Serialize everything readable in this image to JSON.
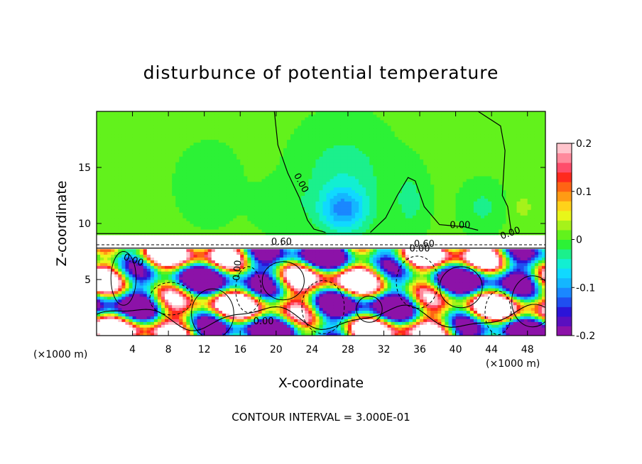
{
  "chart_data": {
    "type": "heatmap",
    "title": "disturbunce of potential temperature",
    "xlabel": "X-coordinate",
    "ylabel": "Z-coordinate",
    "x_unit_left": "(×1000 m)",
    "x_unit_right": "(×1000 m)",
    "xlim": [
      0,
      50
    ],
    "ylim": [
      0,
      20
    ],
    "x_ticks": [
      {
        "v": 4,
        "label": "4"
      },
      {
        "v": 8,
        "label": "8"
      },
      {
        "v": 12,
        "label": "12"
      },
      {
        "v": 16,
        "label": "16"
      },
      {
        "v": 20,
        "label": "20"
      },
      {
        "v": 24,
        "label": "24"
      },
      {
        "v": 28,
        "label": "28"
      },
      {
        "v": 32,
        "label": "32"
      },
      {
        "v": 36,
        "label": "36"
      },
      {
        "v": 40,
        "label": "40"
      },
      {
        "v": 44,
        "label": "44"
      },
      {
        "v": 48,
        "label": "48"
      }
    ],
    "y_ticks": [
      {
        "v": 5,
        "label": "5"
      },
      {
        "v": 10,
        "label": "10"
      },
      {
        "v": 15,
        "label": "15"
      }
    ],
    "colorbar": {
      "range": [
        -0.2,
        0.2
      ],
      "labels": [
        {
          "v": 0.2,
          "label": "0.2"
        },
        {
          "v": 0.1,
          "label": "0.1"
        },
        {
          "v": 0,
          "label": "0"
        },
        {
          "v": -0.1,
          "label": "-0.1"
        },
        {
          "v": -0.2,
          "label": "-0.2"
        }
      ],
      "colors": [
        "#8c12a8",
        "#5a0fbf",
        "#2b14d8",
        "#1f4ff0",
        "#1a87ff",
        "#14b6ff",
        "#10d9ff",
        "#12efd2",
        "#1bf08c",
        "#2cf236",
        "#62f21c",
        "#a6f21a",
        "#e8f61a",
        "#ffd21a",
        "#ff9b14",
        "#ff6414",
        "#ff2a1e",
        "#ff4d6b",
        "#ff8a9c",
        "#ffc4cc"
      ]
    },
    "contour_labels": [
      {
        "x": 22.5,
        "y": 13.5,
        "text": "0.00",
        "rot": 62
      },
      {
        "x": 40.5,
        "y": 9.6,
        "text": "0.00",
        "rot": 0
      },
      {
        "x": 46.2,
        "y": 8.9,
        "text": "0.00",
        "rot": -20
      },
      {
        "x": 20.6,
        "y": 8.1,
        "text": "0.60",
        "rot": 0
      },
      {
        "x": 36.5,
        "y": 7.9,
        "text": "0.60",
        "rot": 0
      },
      {
        "x": 36.0,
        "y": 7.5,
        "text": "0.00",
        "rot": 0
      },
      {
        "x": 4.0,
        "y": 6.5,
        "text": "0.00",
        "rot": 20
      },
      {
        "x": 16.0,
        "y": 5.8,
        "text": "0.00",
        "rot": -85
      },
      {
        "x": 18.6,
        "y": 1.0,
        "text": "0.00",
        "rot": 0
      }
    ],
    "features": {
      "stable_layer_z": [
        7.8,
        9.1
      ],
      "upper_blobs": [
        {
          "x": 12.5,
          "z": 13.5,
          "rx": 4.0,
          "rz": 4.0,
          "v": -0.02
        },
        {
          "x": 20.5,
          "z": 11.5,
          "rx": 3.5,
          "rz": 2.5,
          "v": -0.02
        },
        {
          "x": 27.5,
          "z": 14.0,
          "rx": 6.0,
          "rz": 5.5,
          "v": -0.04
        },
        {
          "x": 27.5,
          "z": 11.2,
          "rx": 3.2,
          "rz": 2.4,
          "v": -0.09
        },
        {
          "x": 35.0,
          "z": 12.0,
          "rx": 2.2,
          "rz": 3.5,
          "v": -0.03
        },
        {
          "x": 43.0,
          "z": 11.5,
          "rx": 2.8,
          "rz": 2.5,
          "v": -0.03
        },
        {
          "x": 47.5,
          "z": 11.5,
          "rx": 2.0,
          "rz": 2.0,
          "v": 0.02
        }
      ]
    },
    "annotation": "CONTOUR INTERVAL = 3.000E-01"
  }
}
